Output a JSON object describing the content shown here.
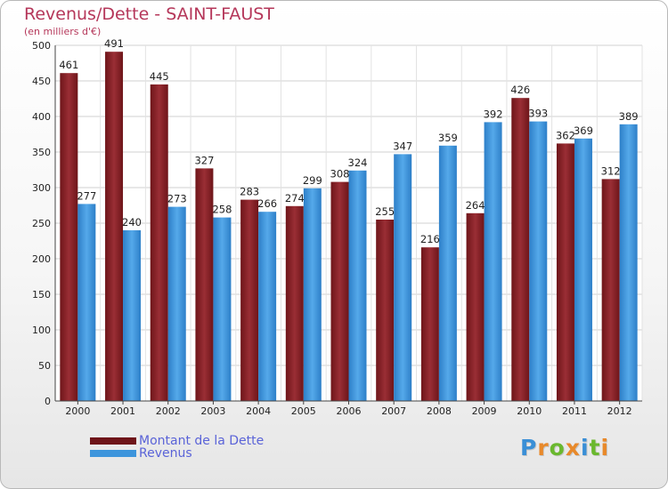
{
  "chart_data": {
    "type": "bar",
    "title": "Revenus/Dette - SAINT-FAUST",
    "subtitle": "(en milliers d'€)",
    "categories": [
      "2000",
      "2001",
      "2002",
      "2003",
      "2004",
      "2005",
      "2006",
      "2007",
      "2008",
      "2009",
      "2010",
      "2011",
      "2012"
    ],
    "series": [
      {
        "name": "Montant de la Dette",
        "color": "#8b2128",
        "values": [
          461,
          491,
          445,
          327,
          283,
          274,
          308,
          255,
          216,
          264,
          426,
          362,
          312
        ]
      },
      {
        "name": "Revenus",
        "color": "#3d95dc",
        "values": [
          277,
          240,
          273,
          258,
          266,
          299,
          324,
          347,
          359,
          392,
          393,
          369,
          389
        ]
      }
    ],
    "ylim": [
      0,
      500
    ],
    "yticks": [
      0,
      50,
      100,
      150,
      200,
      250,
      300,
      350,
      400,
      450,
      500
    ],
    "grid": true,
    "legend_position": "bottom-left"
  },
  "brand": {
    "logo_letters": [
      {
        "ch": "P",
        "color": "#3a8fd6"
      },
      {
        "ch": "r",
        "color": "#e8892a"
      },
      {
        "ch": "o",
        "color": "#6ab82e"
      },
      {
        "ch": "x",
        "color": "#e8892a"
      },
      {
        "ch": "i",
        "color": "#3a8fd6"
      },
      {
        "ch": "t",
        "color": "#6ab82e"
      },
      {
        "ch": "i",
        "color": "#e8892a"
      }
    ]
  }
}
